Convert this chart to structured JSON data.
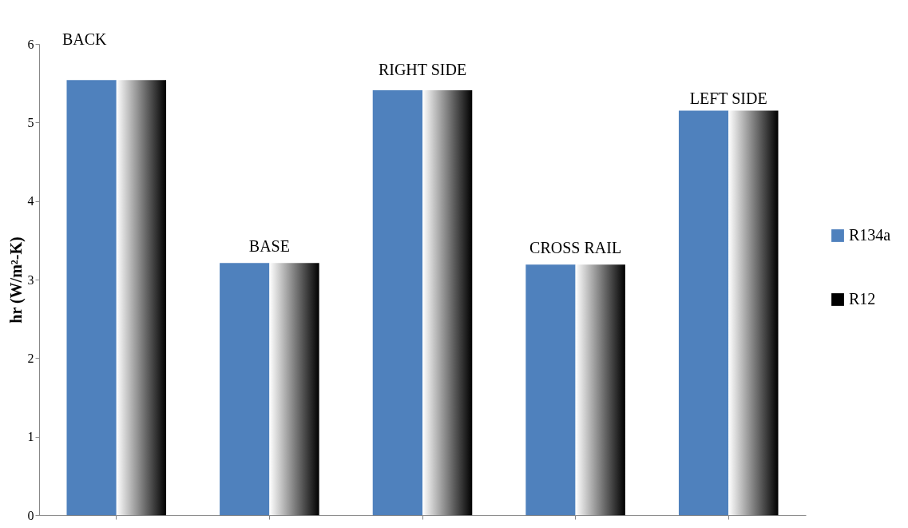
{
  "chart_data": {
    "type": "bar",
    "ylabel": "hr (W/m²-K)",
    "categories": [
      null,
      null,
      null,
      null,
      null
    ],
    "series": [
      {
        "name": "R134a",
        "color": "#4f81bd",
        "values": [
          5.54,
          3.21,
          5.41,
          3.19,
          5.15
        ]
      },
      {
        "name": "R12",
        "color": "#000000",
        "values": [
          5.54,
          3.21,
          5.41,
          3.19,
          5.15
        ]
      }
    ],
    "annotations": [
      "BACK",
      "BASE",
      "RIGHT SIDE",
      "CROSS RAIL",
      "LEFT  SIDE"
    ],
    "ylim": [
      0,
      6
    ],
    "yticks": [
      0,
      1,
      2,
      3,
      4,
      5,
      6
    ],
    "grid": false,
    "legend": "right"
  }
}
